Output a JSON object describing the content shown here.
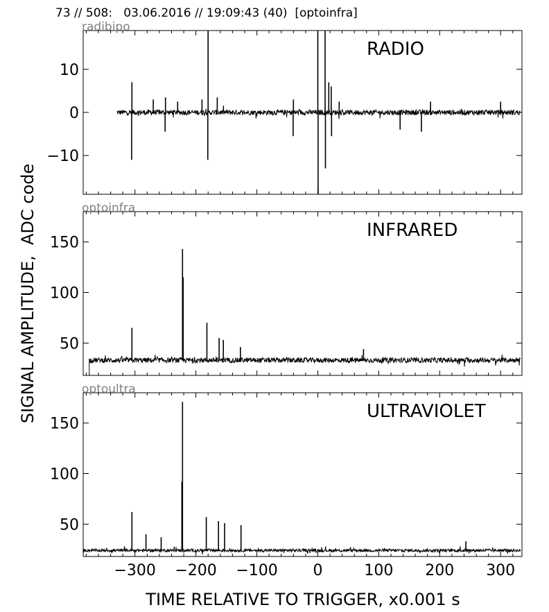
{
  "header": {
    "title": "73 // 508:   03.06.2016 // 19:09:43 (40)  [optoinfra]"
  },
  "chart_data": [
    {
      "type": "line",
      "channel_tag": "radibipo",
      "panel_label": "RADIO",
      "xlim": [
        -385,
        335
      ],
      "ylim": [
        -19,
        19
      ],
      "yticks": [
        10,
        0,
        -10
      ],
      "ytick_labels": [
        "10",
        "0",
        "−10"
      ],
      "baseline": 0,
      "noise": 0.6,
      "trace_start": -330,
      "spikes": [
        {
          "x": -305,
          "y": 7
        },
        {
          "x": -305.5,
          "y": -11
        },
        {
          "x": -270,
          "y": 3
        },
        {
          "x": -250,
          "y": 3.5
        },
        {
          "x": -250.5,
          "y": -4.5
        },
        {
          "x": -230,
          "y": 2.5
        },
        {
          "x": -190,
          "y": 3
        },
        {
          "x": -180,
          "y": 19
        },
        {
          "x": -180.5,
          "y": -11
        },
        {
          "x": -165,
          "y": 3.5
        },
        {
          "x": -40,
          "y": 3
        },
        {
          "x": -40.5,
          "y": -5.5
        },
        {
          "x": 0,
          "y": 19
        },
        {
          "x": 0.5,
          "y": -19
        },
        {
          "x": 12,
          "y": 19
        },
        {
          "x": 12.5,
          "y": -13
        },
        {
          "x": 18,
          "y": 7
        },
        {
          "x": 22,
          "y": 6
        },
        {
          "x": 22.5,
          "y": -5.5
        },
        {
          "x": 35,
          "y": 2.5
        },
        {
          "x": 135,
          "y": -4
        },
        {
          "x": 170,
          "y": -4.5
        },
        {
          "x": 185,
          "y": 2.5
        },
        {
          "x": 300,
          "y": 2.5
        }
      ]
    },
    {
      "type": "line",
      "channel_tag": "optoinfra",
      "panel_label": "INFRARED",
      "xlim": [
        -385,
        335
      ],
      "ylim": [
        18,
        180
      ],
      "yticks": [
        150,
        100,
        50
      ],
      "ytick_labels": [
        "150",
        "100",
        "50"
      ],
      "baseline": 33,
      "noise": 2.5,
      "trace_start": -375,
      "spikes": [
        {
          "x": -305,
          "y": 65
        },
        {
          "x": -222,
          "y": 143
        },
        {
          "x": -221,
          "y": 115
        },
        {
          "x": -182,
          "y": 70
        },
        {
          "x": -162,
          "y": 55
        },
        {
          "x": -155,
          "y": 53
        },
        {
          "x": -127,
          "y": 46
        },
        {
          "x": 75,
          "y": 44
        }
      ]
    },
    {
      "type": "line",
      "channel_tag": "optoultra",
      "panel_label": "ULTRAVIOLET",
      "xlim": [
        -385,
        335
      ],
      "ylim": [
        18,
        180
      ],
      "yticks": [
        150,
        100,
        50
      ],
      "ytick_labels": [
        "150",
        "100",
        "50"
      ],
      "xticks": [
        -300,
        -200,
        -100,
        0,
        100,
        200,
        300
      ],
      "xtick_labels": [
        "−300",
        "−200",
        "−100",
        "0",
        "100",
        "200",
        "300"
      ],
      "baseline": 24,
      "noise": 1.5,
      "trace_start": -385,
      "spikes": [
        {
          "x": -305,
          "y": 62
        },
        {
          "x": -282,
          "y": 40
        },
        {
          "x": -257,
          "y": 37
        },
        {
          "x": -222,
          "y": 171
        },
        {
          "x": -223,
          "y": 92
        },
        {
          "x": -183,
          "y": 57
        },
        {
          "x": -163,
          "y": 53
        },
        {
          "x": -153,
          "y": 51
        },
        {
          "x": -126,
          "y": 49
        },
        {
          "x": 243,
          "y": 33
        }
      ]
    }
  ],
  "axes": {
    "ylabel": "SIGNAL AMPLITUDE,  ADC code",
    "xlabel": "TIME RELATIVE TO TRIGGER,   x0.001 s"
  }
}
